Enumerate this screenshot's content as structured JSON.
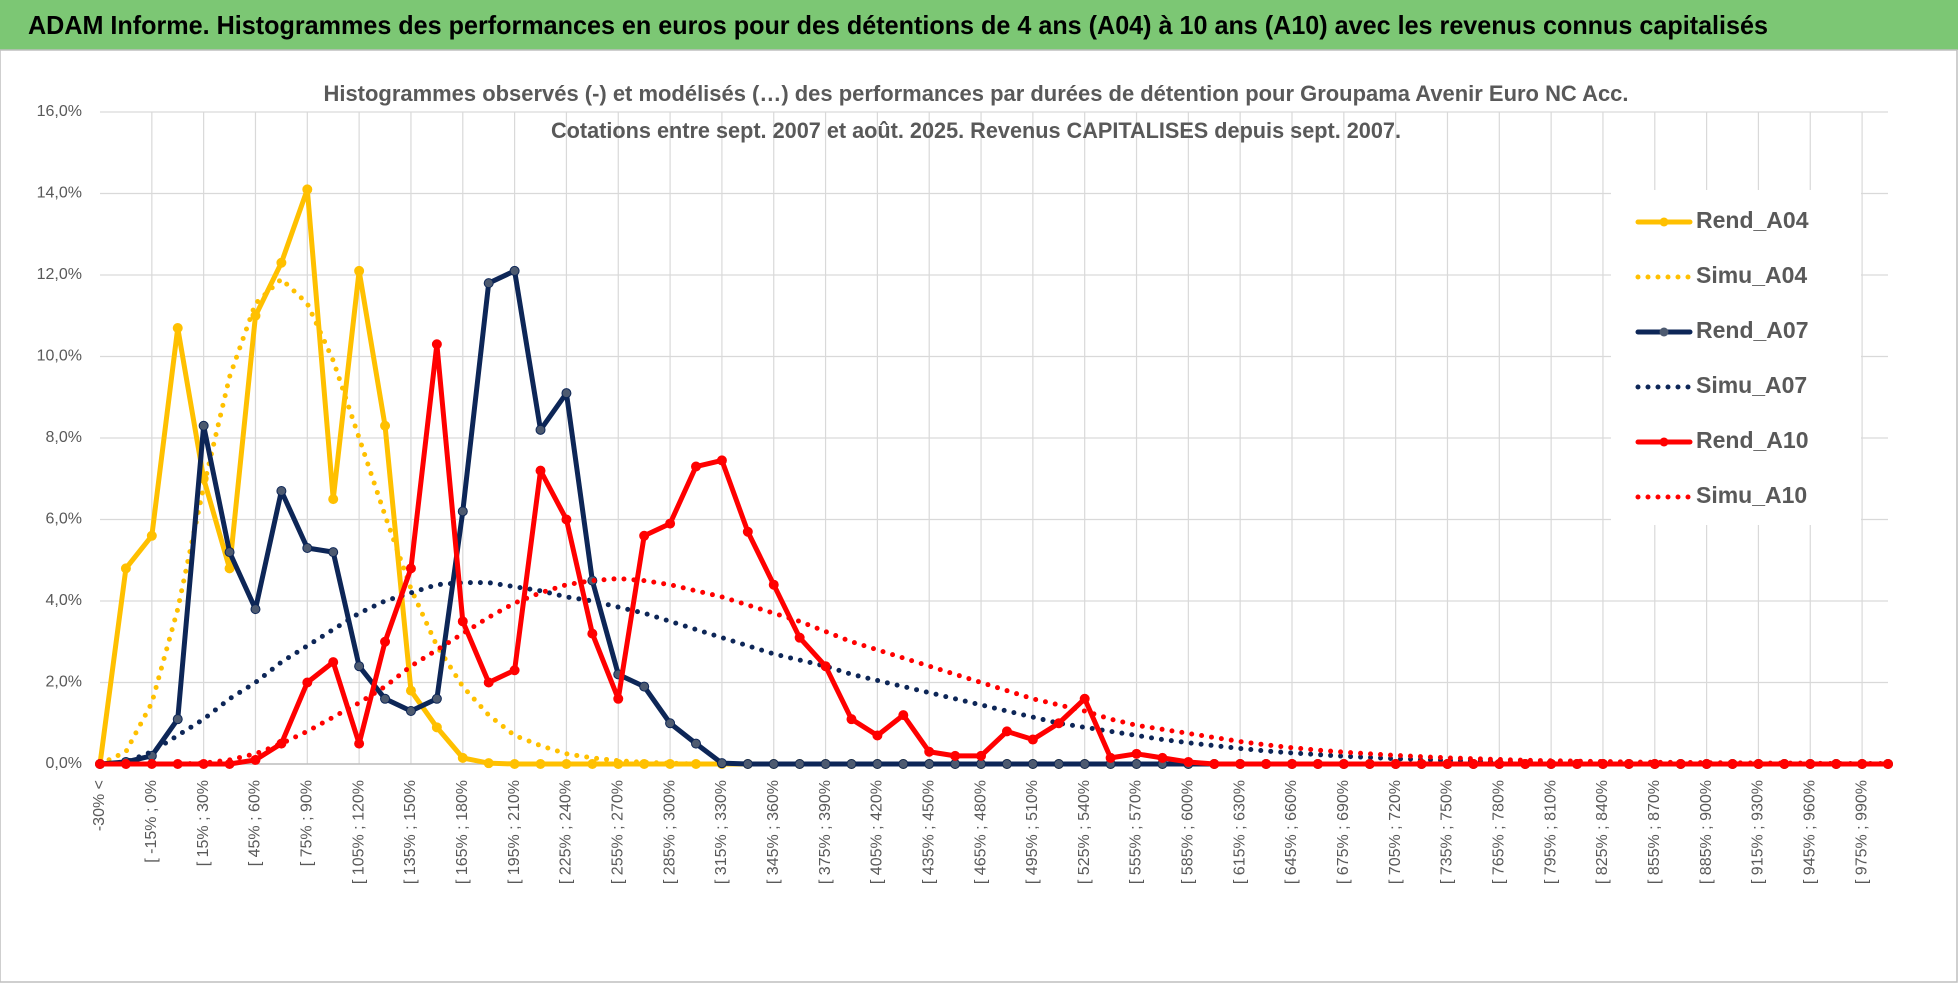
{
  "header": {
    "title": "ADAM Informe. Histogrammes des performances en euros pour des détentions de 4 ans (A04) à 10 ans (A10) avec les revenus connus capitalisés"
  },
  "chart_data": {
    "type": "line",
    "title": "Histogrammes observés (-) et modélisés (…) des performances par durées de détention pour Groupama Avenir Euro NC Acc.",
    "subtitle": "Cotations entre sept. 2007 et août. 2025. Revenus CAPITALISES depuis sept. 2007.",
    "categories": [
      "-30% <",
      null,
      "[ -15% ; 0%",
      null,
      "[ 15% ; 30%",
      null,
      "[ 45% ; 60%",
      null,
      "[ 75% ; 90%",
      null,
      "[ 105% ; 120%",
      null,
      "[ 135% ; 150%",
      null,
      "[ 165% ; 180%",
      null,
      "[ 195% ; 210%",
      null,
      "[ 225% ; 240%",
      null,
      "[ 255% ; 270%",
      null,
      "[ 285% ; 300%",
      null,
      "[ 315% ; 330%",
      null,
      "[ 345% ; 360%",
      null,
      "[ 375% ; 390%",
      null,
      "[ 405% ; 420%",
      null,
      "[ 435% ; 450%",
      null,
      "[ 465% ; 480%",
      null,
      "[ 495% ; 510%",
      null,
      "[ 525% ; 540%",
      null,
      "[ 555% ; 570%",
      null,
      "[ 585% ; 600%",
      null,
      "[ 615% ; 630%",
      null,
      "[ 645% ; 660%",
      null,
      "[ 675% ; 690%",
      null,
      "[ 705% ; 720%",
      null,
      "[ 735% ; 750%",
      null,
      "[ 765% ; 780%",
      null,
      "[ 795% ; 810%",
      null,
      "[ 825% ; 840%",
      null,
      "[ 855% ; 870%",
      null,
      "[ 885% ; 900%",
      null,
      "[ 915% ; 930%",
      null,
      "[ 945% ; 960%",
      null,
      "[ 975% ; 990%",
      null
    ],
    "ylim": [
      0,
      16
    ],
    "yticks": [
      {
        "value": 0,
        "label": "0,0%"
      },
      {
        "value": 2,
        "label": "2,0%"
      },
      {
        "value": 4,
        "label": "4,0%"
      },
      {
        "value": 6,
        "label": "6,0%"
      },
      {
        "value": 8,
        "label": "8,0%"
      },
      {
        "value": 10,
        "label": "10,0%"
      },
      {
        "value": 12,
        "label": "12,0%"
      },
      {
        "value": 14,
        "label": "14,0%"
      },
      {
        "value": 16,
        "label": "16,0%"
      }
    ],
    "grid": true,
    "legend": "right",
    "series": [
      {
        "name": "Rend_A04",
        "color": "#ffc000",
        "style": "solid",
        "markers": true,
        "values": [
          0,
          4.8,
          5.6,
          10.7,
          7.0,
          4.8,
          11.0,
          12.3,
          14.1,
          6.5,
          12.1,
          8.3,
          1.8,
          0.9,
          0.15,
          0.02,
          0,
          0,
          0,
          0,
          0,
          0,
          0,
          0,
          0,
          0,
          0,
          0,
          0,
          0,
          0,
          0,
          0,
          0,
          0,
          0,
          0,
          0,
          0,
          0,
          0,
          0,
          0,
          0,
          0,
          0,
          0,
          0,
          0,
          0,
          0,
          0,
          0,
          0,
          0,
          0,
          0,
          0,
          0,
          0,
          0,
          0,
          0,
          0,
          0,
          0,
          0,
          0,
          0,
          0
        ]
      },
      {
        "name": "Simu_A04",
        "color": "#ffc000",
        "style": "dotted",
        "markers": false,
        "values": [
          0,
          0.3,
          1.5,
          3.8,
          6.8,
          9.5,
          11.3,
          11.9,
          11.3,
          9.9,
          8.0,
          6.1,
          4.3,
          2.9,
          1.9,
          1.2,
          0.7,
          0.45,
          0.25,
          0.15,
          0.08,
          0.04,
          0.02,
          0,
          0,
          0,
          0,
          0,
          0,
          0,
          0,
          0,
          0,
          0,
          0,
          0,
          0,
          0,
          0,
          0,
          0,
          0,
          0,
          0,
          0,
          0,
          0,
          0,
          0,
          0,
          0,
          0,
          0,
          0,
          0,
          0,
          0,
          0,
          0,
          0,
          0,
          0,
          0,
          0,
          0,
          0,
          0,
          0,
          0,
          0
        ]
      },
      {
        "name": "Rend_A07",
        "color": "#0d2657",
        "style": "solid",
        "markers": true,
        "values": [
          0,
          0.05,
          0.2,
          1.1,
          8.3,
          5.2,
          3.8,
          6.7,
          5.3,
          5.2,
          2.4,
          1.6,
          1.3,
          1.6,
          6.2,
          11.8,
          12.1,
          8.2,
          9.1,
          4.5,
          2.2,
          1.9,
          1.0,
          0.5,
          0.02,
          0,
          0,
          0,
          0,
          0,
          0,
          0,
          0,
          0,
          0,
          0,
          0,
          0,
          0,
          0,
          0,
          0,
          0,
          0,
          0,
          0,
          0,
          0,
          0,
          0,
          0,
          0,
          0,
          0,
          0,
          0,
          0,
          0,
          0,
          0,
          0,
          0,
          0,
          0,
          0,
          0,
          0,
          0,
          0,
          0
        ]
      },
      {
        "name": "Simu_A07",
        "color": "#0d2657",
        "style": "dotted",
        "markers": false,
        "values": [
          0,
          0.05,
          0.3,
          0.7,
          1.1,
          1.6,
          2.0,
          2.5,
          2.9,
          3.3,
          3.7,
          4.0,
          4.2,
          4.4,
          4.45,
          4.45,
          4.35,
          4.25,
          4.1,
          4.0,
          3.85,
          3.7,
          3.5,
          3.3,
          3.1,
          2.9,
          2.7,
          2.55,
          2.4,
          2.2,
          2.05,
          1.9,
          1.75,
          1.6,
          1.45,
          1.3,
          1.15,
          1.0,
          0.9,
          0.8,
          0.7,
          0.6,
          0.52,
          0.45,
          0.38,
          0.32,
          0.27,
          0.23,
          0.19,
          0.16,
          0.13,
          0.11,
          0.09,
          0.08,
          0.06,
          0.05,
          0.04,
          0.03,
          0.03,
          0.02,
          0.02,
          0.02,
          0.01,
          0.01,
          0.01,
          0.01,
          0.01,
          0.01,
          0.01,
          0.01
        ]
      },
      {
        "name": "Rend_A10",
        "color": "#ff0000",
        "style": "solid",
        "markers": true,
        "values": [
          0,
          0,
          0,
          0,
          0,
          0,
          0.1,
          0.5,
          2.0,
          2.5,
          0.5,
          3.0,
          4.8,
          10.3,
          3.5,
          2.0,
          2.3,
          7.2,
          6.0,
          3.2,
          1.6,
          5.6,
          5.9,
          7.3,
          7.45,
          5.7,
          4.4,
          3.1,
          2.4,
          1.1,
          0.7,
          1.2,
          0.3,
          0.2,
          0.2,
          0.8,
          0.6,
          1.0,
          1.6,
          0.15,
          0.25,
          0.15,
          0.05,
          0,
          0,
          0,
          0,
          0,
          0,
          0,
          0,
          0,
          0,
          0,
          0,
          0,
          0,
          0,
          0,
          0,
          0,
          0,
          0,
          0,
          0,
          0,
          0,
          0,
          0,
          0
        ]
      },
      {
        "name": "Simu_A10",
        "color": "#ff0000",
        "style": "dotted",
        "markers": false,
        "values": [
          0,
          0,
          0,
          0,
          0.02,
          0.1,
          0.25,
          0.5,
          0.8,
          1.15,
          1.5,
          1.9,
          2.4,
          2.8,
          3.2,
          3.6,
          3.95,
          4.2,
          4.4,
          4.5,
          4.55,
          4.5,
          4.4,
          4.25,
          4.1,
          3.9,
          3.7,
          3.5,
          3.25,
          3.0,
          2.8,
          2.6,
          2.4,
          2.2,
          2.0,
          1.8,
          1.6,
          1.45,
          1.3,
          1.1,
          0.95,
          0.85,
          0.75,
          0.65,
          0.55,
          0.47,
          0.4,
          0.34,
          0.29,
          0.25,
          0.21,
          0.18,
          0.15,
          0.13,
          0.11,
          0.09,
          0.08,
          0.07,
          0.06,
          0.05,
          0.04,
          0.04,
          0.03,
          0.03,
          0.02,
          0.02,
          0.02,
          0.01,
          0.01,
          0.01
        ]
      }
    ]
  }
}
